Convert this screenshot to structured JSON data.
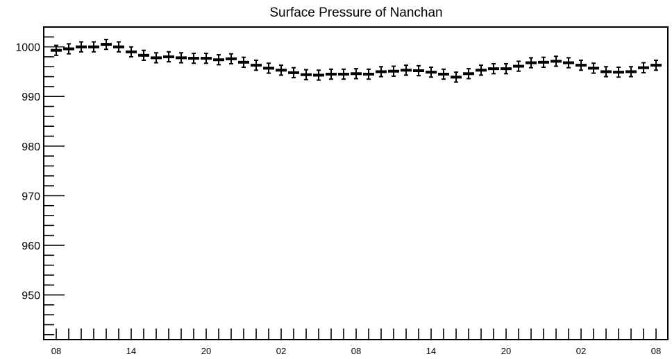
{
  "chart_data": {
    "type": "scatter",
    "title": "Surface Pressure of Nanchan",
    "xlabel": "",
    "ylabel": "",
    "ylim": [
      941,
      1004
    ],
    "yticks": [
      950,
      960,
      970,
      980,
      990,
      1000
    ],
    "xlim": [
      -1.5,
      48
    ],
    "x_ticks": [
      {
        "hour": 0,
        "label": "08"
      },
      {
        "hour": 6,
        "label": "14"
      },
      {
        "hour": 12,
        "label": "20"
      },
      {
        "hour": 18,
        "label": "02"
      },
      {
        "hour": 24,
        "label": "08"
      },
      {
        "hour": 30,
        "label": "14"
      },
      {
        "hour": 36,
        "label": "20"
      },
      {
        "hour": 42,
        "label": "02"
      },
      {
        "hour": 48,
        "label": "08"
      }
    ],
    "error_bar": 1,
    "grid": false,
    "series": [
      {
        "color": "#000000",
        "x": [
          0,
          1,
          2,
          3,
          4,
          5,
          6,
          7,
          8,
          9,
          10,
          11,
          12,
          13,
          14,
          15,
          16,
          17,
          18,
          19,
          20,
          21,
          22,
          23,
          24,
          25,
          26,
          27,
          28,
          29,
          30,
          31,
          32,
          33,
          34,
          35,
          36,
          37,
          38,
          39,
          40,
          41,
          42,
          43,
          44,
          45,
          46,
          47,
          48
        ],
        "y": [
          999.3,
          999.6,
          1000.0,
          1000.0,
          1000.5,
          1000.0,
          999.0,
          998.3,
          997.8,
          998.0,
          997.8,
          997.7,
          997.7,
          997.4,
          997.6,
          996.9,
          996.3,
          995.7,
          995.3,
          994.8,
          994.4,
          994.3,
          994.5,
          994.5,
          994.6,
          994.5,
          995.0,
          995.1,
          995.3,
          995.2,
          994.9,
          994.5,
          993.9,
          994.6,
          995.3,
          995.6,
          995.6,
          996.1,
          996.8,
          996.9,
          997.1,
          996.8,
          996.3,
          995.7,
          995.0,
          994.9,
          995.0,
          995.8,
          996.3
        ]
      }
    ]
  }
}
